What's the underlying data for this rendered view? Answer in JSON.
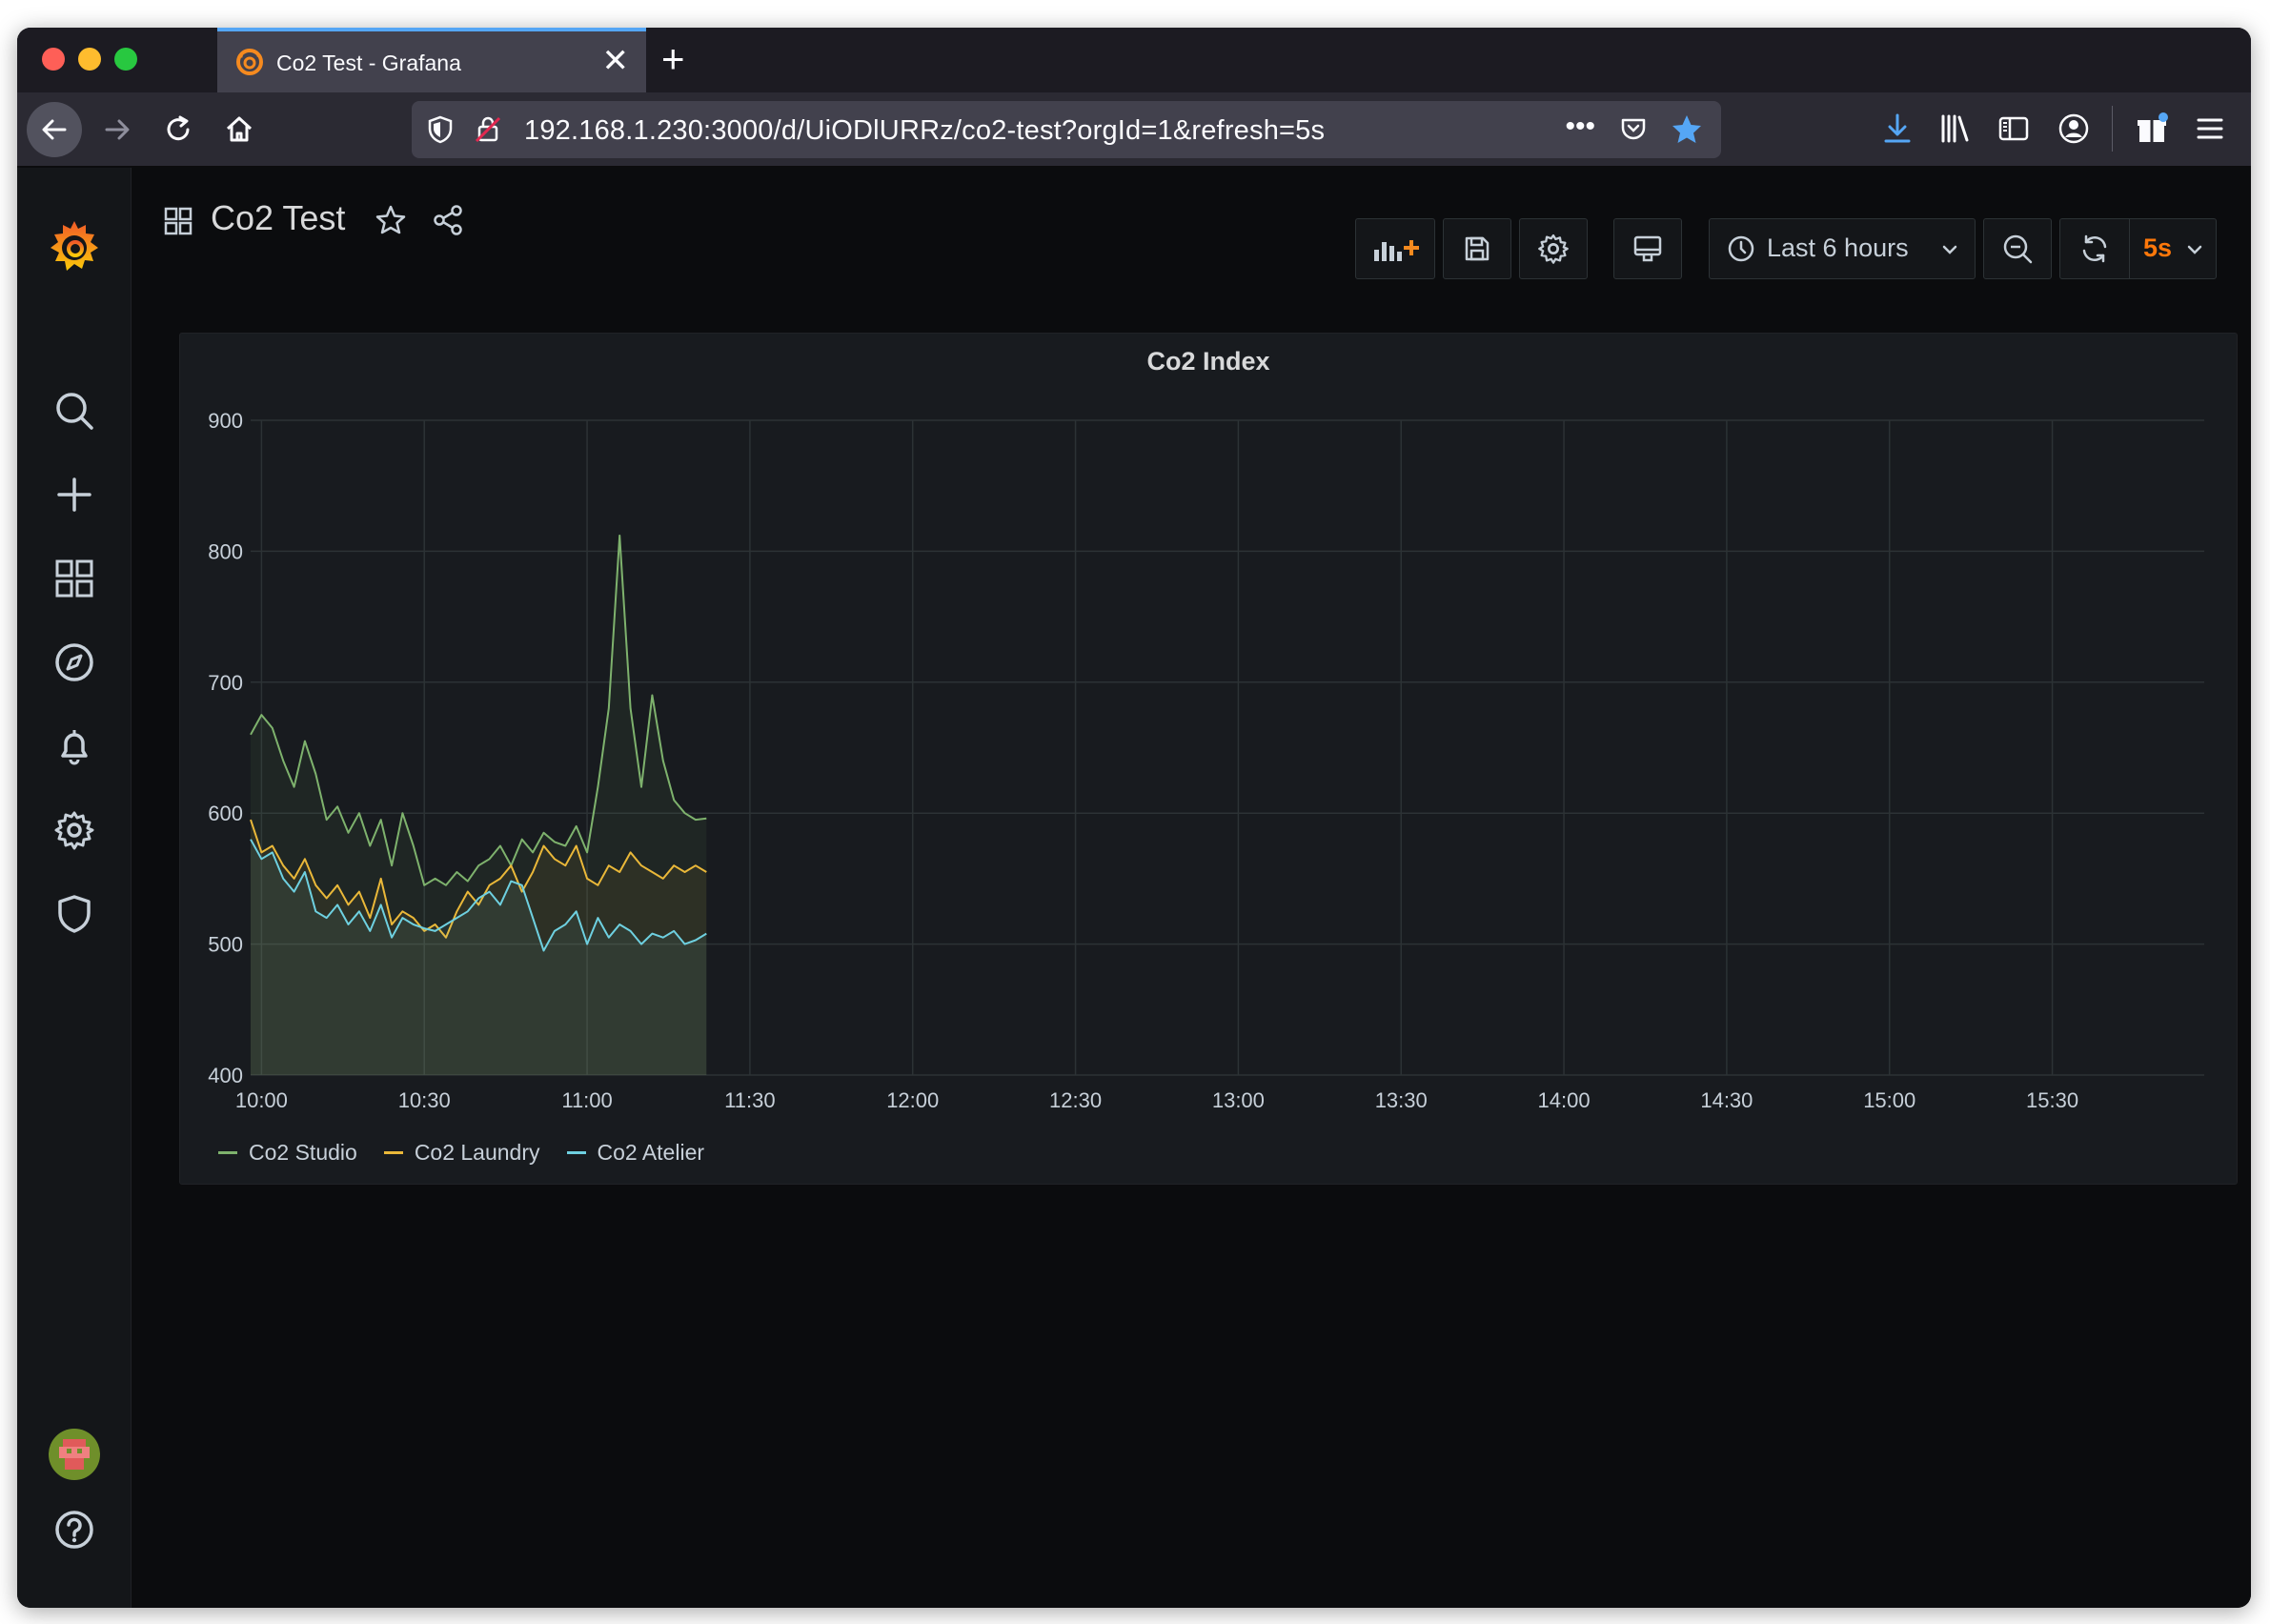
{
  "browser": {
    "tab_title": "Co2 Test - Grafana",
    "tab_close": "✕",
    "new_tab": "+",
    "url": "192.168.1.230:3000/d/UiODlURRz/co2-test?orgId=1&refresh=5s",
    "url_more": "•••"
  },
  "dashboard": {
    "title": "Co2 Test",
    "time_range": "Last 6 hours",
    "refresh_interval": "5s"
  },
  "panel": {
    "title": "Co2 Index"
  },
  "colors": {
    "studio": "#7eb26d",
    "laundry": "#eab839",
    "atelier": "#6ed0e0",
    "refresh_accent": "#ff780a",
    "grafana_orange": "#f58a1f"
  },
  "sidebar": {
    "icons": [
      "grafana-logo-icon",
      "search-icon",
      "plus-icon",
      "dashboards-icon",
      "explore-icon",
      "alerting-icon",
      "configuration-icon",
      "server-admin-icon",
      "user-avatar",
      "help-icon"
    ]
  },
  "chart_data": {
    "type": "line",
    "title": "Co2 Index",
    "x_ticks": [
      "10:00",
      "10:30",
      "11:00",
      "11:30",
      "12:00",
      "12:30",
      "13:00",
      "13:30",
      "14:00",
      "14:30",
      "15:00",
      "15:30"
    ],
    "y_ticks": [
      400,
      500,
      600,
      700,
      800,
      900
    ],
    "ylim": [
      400,
      900
    ],
    "x_range": [
      "09:58",
      "15:58"
    ],
    "grid": true,
    "legend_position": "bottom-left",
    "series": [
      {
        "name": "Co2 Studio",
        "color": "#7eb26d",
        "segments": [
          {
            "x": [
              "09:58",
              "10:00",
              "10:02",
              "10:04",
              "10:06",
              "10:08",
              "10:10",
              "10:12",
              "10:14",
              "10:16",
              "10:18",
              "10:20",
              "10:22",
              "10:24",
              "10:26",
              "10:28",
              "10:30",
              "10:32",
              "10:34",
              "10:36",
              "10:38",
              "10:40",
              "10:42",
              "10:44",
              "10:46",
              "10:48",
              "10:50",
              "10:52",
              "10:54",
              "10:56",
              "10:58",
              "11:00",
              "11:02",
              "11:04",
              "11:06",
              "11:08",
              "11:10",
              "11:12",
              "11:14",
              "11:16",
              "11:18",
              "11:20",
              "11:22"
            ],
            "y": [
              660,
              675,
              665,
              640,
              620,
              655,
              630,
              595,
              605,
              585,
              600,
              575,
              595,
              560,
              600,
              575,
              545,
              550,
              545,
              555,
              548,
              560,
              565,
              575,
              560,
              580,
              570,
              585,
              578,
              575,
              590,
              570,
              620,
              680,
              812,
              680,
              620,
              690,
              640,
              610,
              600,
              595,
              596
            ]
          }
        ]
      },
      {
        "name": "Co2 Laundry",
        "color": "#eab839",
        "segments": [
          {
            "x": [
              "09:58",
              "10:00",
              "10:02",
              "10:04",
              "10:06",
              "10:08",
              "10:10",
              "10:12",
              "10:14",
              "10:16",
              "10:18",
              "10:20",
              "10:22",
              "10:24",
              "10:26",
              "10:28",
              "10:30",
              "10:32",
              "10:34",
              "10:36",
              "10:38",
              "10:40",
              "10:42",
              "10:44",
              "10:46",
              "10:48",
              "10:50",
              "10:52",
              "10:54",
              "10:56",
              "10:58",
              "11:00",
              "11:02",
              "11:04",
              "11:06",
              "11:08",
              "11:10",
              "11:12",
              "11:14",
              "11:16",
              "11:18",
              "11:20",
              "11:22"
            ],
            "y": [
              595,
              570,
              575,
              560,
              550,
              565,
              545,
              535,
              545,
              530,
              540,
              520,
              550,
              515,
              525,
              520,
              510,
              515,
              505,
              525,
              540,
              530,
              545,
              550,
              560,
              540,
              555,
              575,
              565,
              560,
              575,
              550,
              545,
              560,
              555,
              570,
              560,
              555,
              550,
              560,
              555,
              560,
              555
            ]
          }
        ]
      },
      {
        "name": "Co2 Atelier",
        "color": "#6ed0e0",
        "segments": [
          {
            "x": [
              "09:58",
              "10:00",
              "10:02",
              "10:04",
              "10:06",
              "10:08",
              "10:10",
              "10:12",
              "10:14",
              "10:16",
              "10:18",
              "10:20",
              "10:22",
              "10:24",
              "10:26",
              "10:28",
              "10:30",
              "10:32",
              "10:34",
              "10:36",
              "10:38",
              "10:40",
              "10:42",
              "10:44",
              "10:46",
              "10:48",
              "10:50",
              "10:52",
              "10:54",
              "10:56",
              "10:58",
              "11:00",
              "11:02",
              "11:04",
              "11:06",
              "11:08",
              "11:10",
              "11:12",
              "11:14",
              "11:16",
              "11:18",
              "11:20",
              "11:22"
            ],
            "y": [
              580,
              565,
              570,
              550,
              540,
              555,
              525,
              520,
              530,
              515,
              525,
              510,
              530,
              505,
              520,
              515,
              512,
              510,
              515,
              520,
              525,
              535,
              540,
              530,
              548,
              545,
              520,
              495,
              510,
              515,
              525,
              500,
              520,
              505,
              515,
              510,
              500,
              508,
              505,
              510,
              500,
              503,
              508
            ]
          }
        ]
      }
    ]
  }
}
